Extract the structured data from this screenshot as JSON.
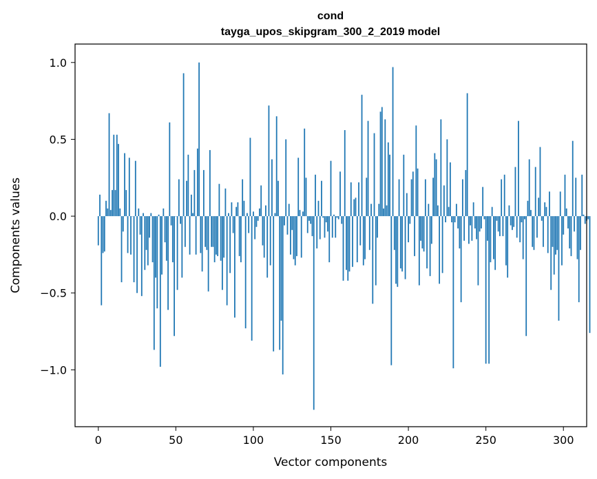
{
  "chart_data": {
    "type": "bar",
    "title": "cond",
    "subtitle": "tayga_upos_skipgram_300_2_2019 model",
    "xlabel": "Vector components",
    "ylabel": "Components values",
    "xlim": [
      -15,
      315
    ],
    "ylim": [
      -1.37,
      1.12
    ],
    "xticks": [
      0,
      50,
      100,
      150,
      200,
      250,
      300
    ],
    "xtick_labels": [
      "0",
      "50",
      "100",
      "150",
      "200",
      "250",
      "300"
    ],
    "yticks": [
      1.0,
      0.5,
      0.0,
      -0.5,
      -1.0
    ],
    "ytick_labels": [
      "1.0",
      "0.5",
      "0.0",
      "−0.5",
      "−1.0"
    ],
    "bar_color": "#1f77b4",
    "values": [
      -0.19,
      0.14,
      -0.58,
      -0.24,
      -0.23,
      0.1,
      0.05,
      0.67,
      0.04,
      0.17,
      0.53,
      0.17,
      0.53,
      0.47,
      0.05,
      -0.43,
      -0.1,
      0.41,
      0.17,
      -0.24,
      0.38,
      -0.25,
      -0.0,
      -0.43,
      0.36,
      -0.5,
      0.05,
      -0.12,
      -0.52,
      0.02,
      -0.35,
      -0.22,
      -0.32,
      -0.14,
      0.02,
      -0.3,
      -0.87,
      -0.4,
      -0.6,
      0.01,
      -0.98,
      -0.38,
      0.05,
      -0.17,
      -0.29,
      -0.61,
      0.61,
      -0.06,
      -0.3,
      -0.78,
      0.0,
      -0.48,
      0.24,
      -0.05,
      -0.4,
      0.93,
      -0.2,
      0.23,
      0.4,
      -0.25,
      0.14,
      0.02,
      0.3,
      -0.25,
      0.44,
      1.0,
      -0.24,
      -0.36,
      0.3,
      -0.2,
      -0.22,
      -0.49,
      0.43,
      -0.2,
      -0.2,
      -0.3,
      -0.25,
      -0.26,
      0.21,
      -0.29,
      -0.48,
      -0.27,
      0.18,
      -0.58,
      0.02,
      -0.37,
      0.09,
      -0.11,
      -0.66,
      0.06,
      0.09,
      -0.26,
      -0.3,
      0.24,
      0.1,
      -0.73,
      0.02,
      -0.11,
      0.51,
      -0.81,
      0.03,
      -0.15,
      -0.07,
      -0.03,
      0.05,
      0.2,
      -0.19,
      -0.27,
      0.07,
      -0.4,
      0.72,
      -0.32,
      0.37,
      -0.88,
      0.02,
      0.65,
      0.23,
      -0.87,
      -0.68,
      -1.03,
      -0.06,
      0.5,
      -0.12,
      0.08,
      -0.25,
      -0.09,
      -0.28,
      -0.32,
      -0.26,
      0.38,
      0.04,
      -0.27,
      0.03,
      0.57,
      0.25,
      -0.11,
      -0.03,
      -0.05,
      -0.13,
      -1.26,
      0.27,
      -0.21,
      0.1,
      -0.15,
      0.23,
      -0.01,
      -0.14,
      -0.04,
      -0.1,
      -0.3,
      0.36,
      -0.14,
      0.01,
      -0.14,
      -0.01,
      -0.02,
      0.29,
      -0.05,
      -0.42,
      0.56,
      -0.35,
      -0.42,
      -0.36,
      0.22,
      -0.33,
      0.11,
      0.12,
      -0.3,
      0.22,
      -0.19,
      0.79,
      -0.32,
      -0.28,
      0.25,
      0.62,
      -0.22,
      0.08,
      -0.57,
      0.54,
      -0.45,
      -0.14,
      0.08,
      0.68,
      0.71,
      0.05,
      0.63,
      0.07,
      0.48,
      0.4,
      -0.97,
      0.97,
      -0.22,
      -0.44,
      -0.46,
      0.24,
      -0.34,
      -0.36,
      0.4,
      -0.41,
      0.15,
      -0.17,
      -0.05,
      0.24,
      0.29,
      -0.26,
      0.59,
      0.31,
      -0.45,
      -0.16,
      -0.21,
      -0.23,
      0.24,
      -0.34,
      0.08,
      -0.39,
      -0.18,
      0.25,
      0.41,
      0.37,
      0.07,
      -0.44,
      0.63,
      -0.37,
      0.2,
      -0.04,
      0.5,
      0.06,
      0.35,
      -0.04,
      -0.99,
      -0.04,
      0.08,
      -0.08,
      -0.21,
      -0.56,
      0.24,
      -0.16,
      0.3,
      0.8,
      -0.18,
      -0.06,
      -0.16,
      0.09,
      -0.08,
      -0.15,
      -0.45,
      -0.1,
      -0.08,
      0.19,
      -0.02,
      -0.96,
      -0.16,
      -0.96,
      -0.3,
      0.06,
      -0.28,
      -0.35,
      -0.03,
      -0.1,
      -0.13,
      0.24,
      -0.13,
      0.27,
      -0.32,
      -0.4,
      0.07,
      -0.06,
      -0.09,
      -0.07,
      0.32,
      -0.14,
      0.62,
      -0.17,
      -0.04,
      -0.28,
      -0.02,
      -0.78,
      0.1,
      0.37,
      0.04,
      -0.2,
      -0.22,
      0.32,
      -0.14,
      0.12,
      0.45,
      -0.03,
      -0.2,
      0.09,
      0.06,
      -0.24,
      0.16,
      -0.48,
      -0.2,
      -0.38,
      -0.25,
      -0.22,
      -0.68,
      0.16,
      -0.32,
      -0.12,
      0.27,
      0.05,
      -0.08,
      -0.21,
      -0.26,
      0.49,
      -0.1,
      0.25,
      -0.28,
      -0.56,
      -0.22,
      0.27,
      0.01,
      -0.05,
      -0.03,
      -0.02,
      -0.76
    ]
  }
}
